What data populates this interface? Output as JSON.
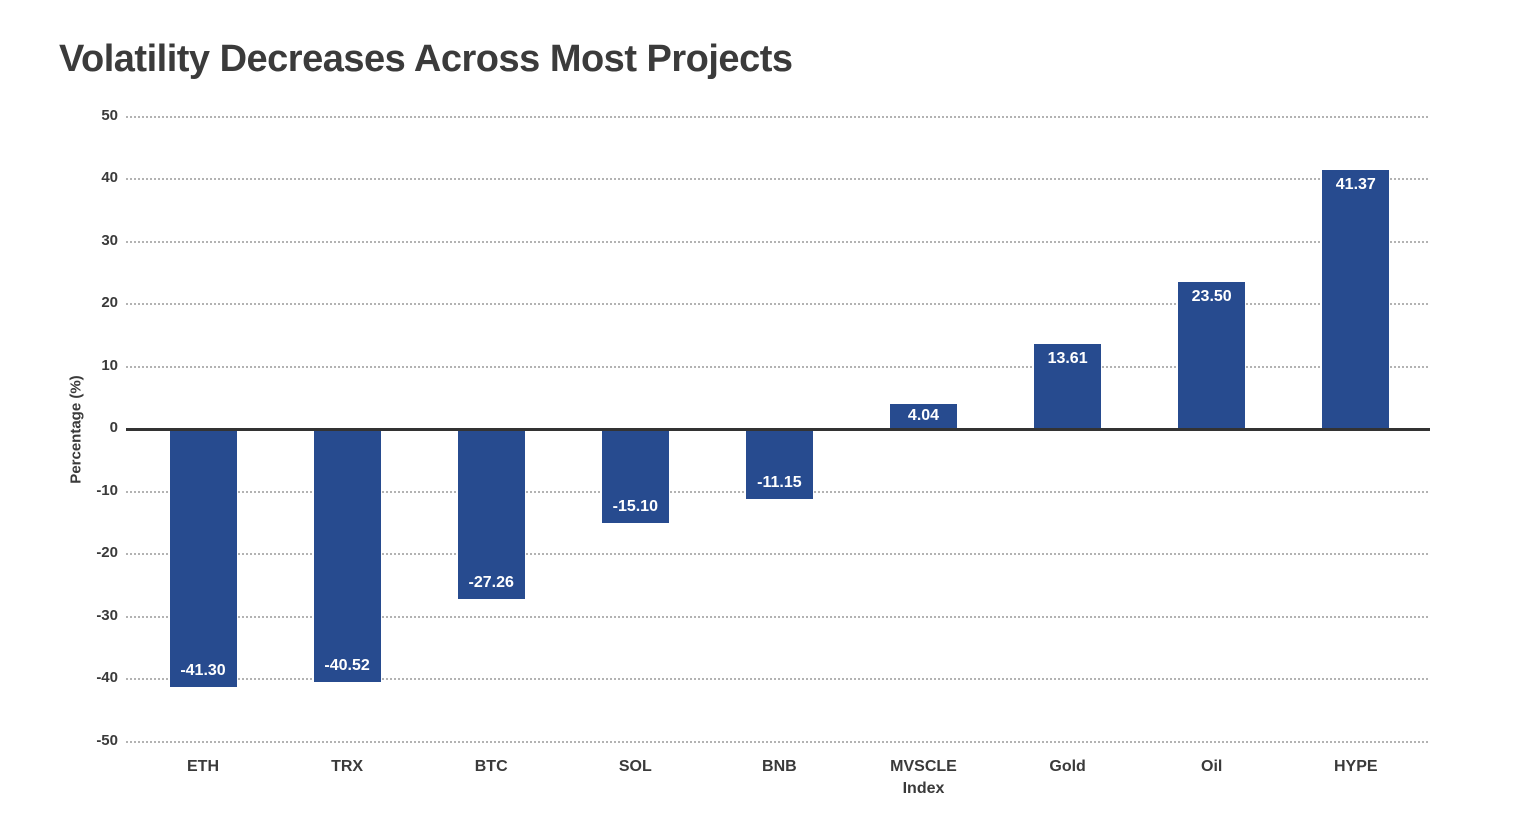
{
  "chart_data": {
    "type": "bar",
    "title": "Volatility Decreases Across Most Projects",
    "xlabel": "",
    "ylabel": "Percentage (%)",
    "categories": [
      "ETH",
      "TRX",
      "BTC",
      "SOL",
      "BNB",
      "MVSCLE\nIndex",
      "Gold",
      "Oil",
      "HYPE"
    ],
    "values": [
      -41.3,
      -40.52,
      -27.26,
      -15.1,
      -11.15,
      4.04,
      13.61,
      23.5,
      41.37
    ],
    "value_labels": [
      "-41.30",
      "-40.52",
      "-27.26",
      "-15.10",
      "-11.15",
      "4.04",
      "13.61",
      "23.50",
      "41.37"
    ],
    "ylim": [
      -50,
      50
    ],
    "yticks": [
      50,
      40,
      30,
      20,
      10,
      0,
      -10,
      -20,
      -30,
      -40,
      -50
    ],
    "grid": "horizontal-dotted",
    "legend": "none",
    "colors": {
      "bar": "#274b8f",
      "title_text": "#3b3b3b",
      "axis_text": "#3a3a3a",
      "gridline": "#b3b3b3",
      "zero_line": "#333333",
      "value_label_text": "#ffffff",
      "background": "#ffffff"
    }
  }
}
